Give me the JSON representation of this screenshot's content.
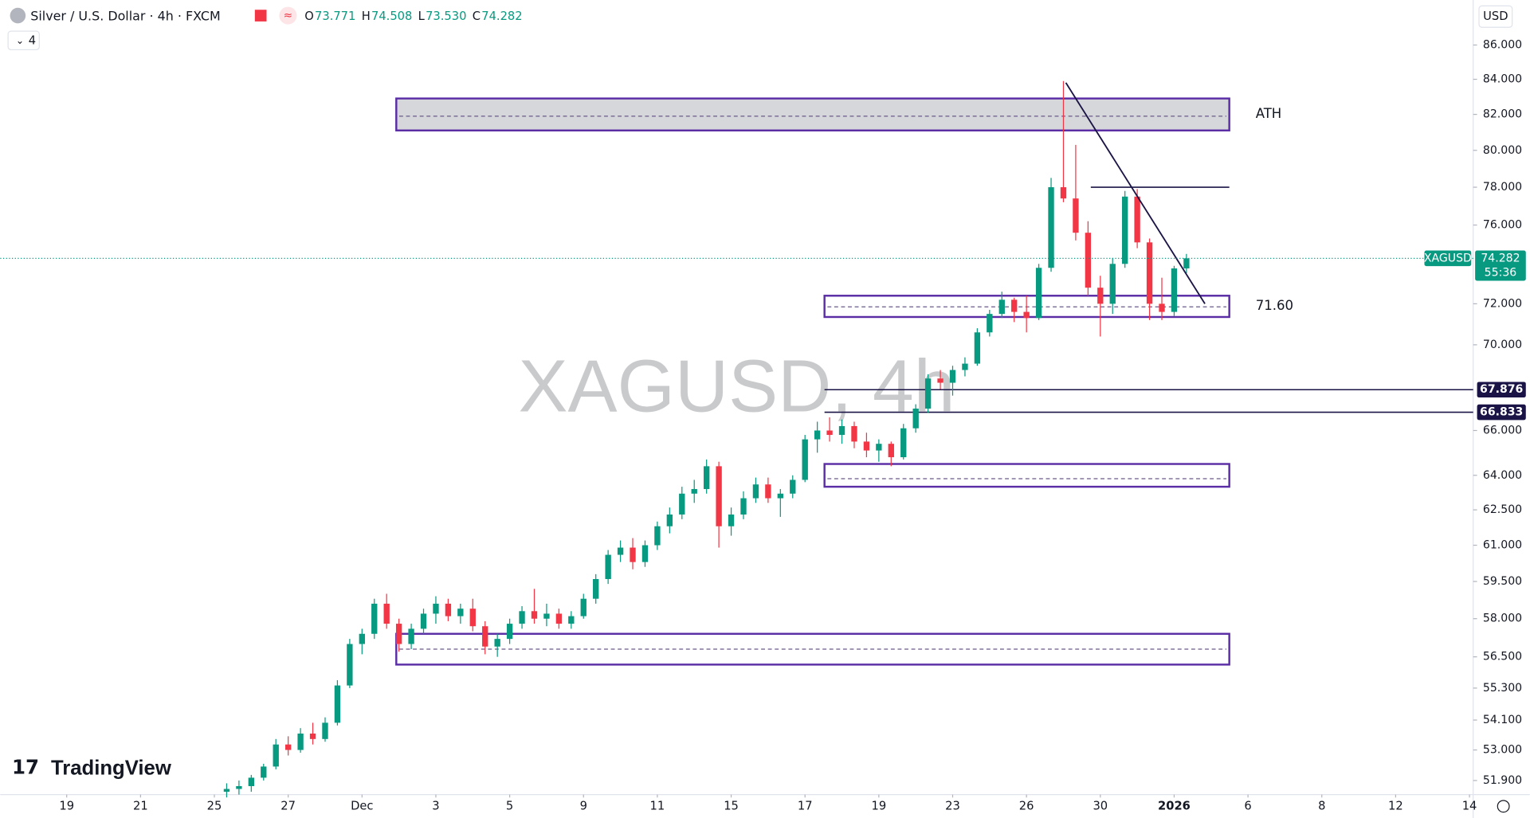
{
  "header": {
    "symbol": "Silver / U.S. Dollar · 4h · FXCM",
    "ohlc": [
      {
        "key": "O",
        "text": "73.771"
      },
      {
        "key": "H",
        "text": "74.508"
      },
      {
        "key": "L",
        "text": "73.530"
      },
      {
        "key": "C",
        "text": "74.282"
      }
    ],
    "indicators": "4",
    "currency": "USD",
    "logo": "TradingView"
  },
  "chart_data": {
    "type": "candlestick",
    "watermark": "XAGUSD, 4h",
    "symbol_tag": "XAGUSD",
    "countdown": "55:36",
    "log_scale": true,
    "up_color": "#089981",
    "down_color": "#f23645",
    "ylim": [
      51.4,
      88.7
    ],
    "yticks": [
      {
        "value": 86,
        "label": "86.000"
      },
      {
        "value": 84,
        "label": "84.000"
      },
      {
        "value": 82,
        "label": "82.000"
      },
      {
        "value": 80,
        "label": "80.000"
      },
      {
        "value": 78,
        "label": "78.000"
      },
      {
        "value": 76,
        "label": "76.000"
      },
      {
        "value": 72,
        "label": "72.000"
      },
      {
        "value": 70,
        "label": "70.000"
      },
      {
        "value": 66,
        "label": "66.000"
      },
      {
        "value": 64,
        "label": "64.000"
      },
      {
        "value": 62.5,
        "label": "62.500"
      },
      {
        "value": 61,
        "label": "61.000"
      },
      {
        "value": 59.5,
        "label": "59.500"
      },
      {
        "value": 58,
        "label": "58.000"
      },
      {
        "value": 56.5,
        "label": "56.500"
      },
      {
        "value": 55.3,
        "label": "55.300"
      },
      {
        "value": 54.1,
        "label": "54.100"
      },
      {
        "value": 53,
        "label": "53.000"
      },
      {
        "value": 51.9,
        "label": "51.900"
      }
    ],
    "xlim": [
      -18.4,
      101.3
    ],
    "xticks": [
      {
        "value": -13,
        "label": "19"
      },
      {
        "value": -7,
        "label": "21"
      },
      {
        "value": -1,
        "label": "25"
      },
      {
        "value": 5,
        "label": "27"
      },
      {
        "value": 11,
        "label": "Dec"
      },
      {
        "value": 17,
        "label": "3"
      },
      {
        "value": 23,
        "label": "5"
      },
      {
        "value": 29,
        "label": "9"
      },
      {
        "value": 35,
        "label": "11"
      },
      {
        "value": 41,
        "label": "15"
      },
      {
        "value": 47,
        "label": "17"
      },
      {
        "value": 53,
        "label": "19"
      },
      {
        "value": 59,
        "label": "23"
      },
      {
        "value": 65,
        "label": "26"
      },
      {
        "value": 71,
        "label": "30"
      },
      {
        "value": 77,
        "label": "2026"
      },
      {
        "value": 83,
        "label": "6"
      },
      {
        "value": 89,
        "label": "8"
      },
      {
        "value": 95,
        "label": "12"
      },
      {
        "value": 101,
        "label": "14"
      }
    ],
    "candles": [
      {
        "open": 51.5,
        "high": 51.8,
        "low": 51.3,
        "close": 51.6
      },
      {
        "open": 51.6,
        "high": 51.9,
        "low": 51.4,
        "close": 51.7
      },
      {
        "open": 51.7,
        "high": 52.1,
        "low": 51.5,
        "close": 52.0
      },
      {
        "open": 52.0,
        "high": 52.5,
        "low": 51.9,
        "close": 52.4
      },
      {
        "open": 52.4,
        "high": 53.4,
        "low": 52.3,
        "close": 53.2
      },
      {
        "open": 53.2,
        "high": 53.5,
        "low": 52.8,
        "close": 53.0
      },
      {
        "open": 53.0,
        "high": 53.8,
        "low": 52.9,
        "close": 53.6
      },
      {
        "open": 53.6,
        "high": 54.0,
        "low": 53.2,
        "close": 53.4
      },
      {
        "open": 53.4,
        "high": 54.2,
        "low": 53.3,
        "close": 54.0
      },
      {
        "open": 54.0,
        "high": 55.6,
        "low": 53.9,
        "close": 55.4
      },
      {
        "open": 55.4,
        "high": 57.2,
        "low": 55.3,
        "close": 57.0
      },
      {
        "open": 57.0,
        "high": 57.6,
        "low": 56.6,
        "close": 57.4
      },
      {
        "open": 57.4,
        "high": 58.8,
        "low": 57.2,
        "close": 58.6
      },
      {
        "open": 58.6,
        "high": 59.0,
        "low": 57.6,
        "close": 57.8
      },
      {
        "open": 57.8,
        "high": 58.0,
        "low": 56.7,
        "close": 57.0
      },
      {
        "open": 57.0,
        "high": 57.8,
        "low": 56.8,
        "close": 57.6
      },
      {
        "open": 57.6,
        "high": 58.4,
        "low": 57.4,
        "close": 58.2
      },
      {
        "open": 58.2,
        "high": 58.9,
        "low": 57.8,
        "close": 58.6
      },
      {
        "open": 58.6,
        "high": 58.8,
        "low": 57.9,
        "close": 58.1
      },
      {
        "open": 58.1,
        "high": 58.6,
        "low": 57.8,
        "close": 58.4
      },
      {
        "open": 58.4,
        "high": 58.8,
        "low": 57.5,
        "close": 57.7
      },
      {
        "open": 57.7,
        "high": 57.9,
        "low": 56.6,
        "close": 56.9
      },
      {
        "open": 56.9,
        "high": 57.4,
        "low": 56.5,
        "close": 57.2
      },
      {
        "open": 57.2,
        "high": 58.0,
        "low": 57.0,
        "close": 57.8
      },
      {
        "open": 57.8,
        "high": 58.5,
        "low": 57.6,
        "close": 58.3
      },
      {
        "open": 58.3,
        "high": 59.2,
        "low": 57.8,
        "close": 58.0
      },
      {
        "open": 58.0,
        "high": 58.6,
        "low": 57.7,
        "close": 58.2
      },
      {
        "open": 58.2,
        "high": 58.4,
        "low": 57.6,
        "close": 57.8
      },
      {
        "open": 57.8,
        "high": 58.3,
        "low": 57.6,
        "close": 58.1
      },
      {
        "open": 58.1,
        "high": 59.0,
        "low": 58.0,
        "close": 58.8
      },
      {
        "open": 58.8,
        "high": 59.8,
        "low": 58.6,
        "close": 59.6
      },
      {
        "open": 59.6,
        "high": 60.8,
        "low": 59.4,
        "close": 60.6
      },
      {
        "open": 60.6,
        "high": 61.2,
        "low": 60.3,
        "close": 60.9
      },
      {
        "open": 60.9,
        "high": 61.3,
        "low": 60.0,
        "close": 60.3
      },
      {
        "open": 60.3,
        "high": 61.2,
        "low": 60.1,
        "close": 61.0
      },
      {
        "open": 61.0,
        "high": 62.0,
        "low": 60.8,
        "close": 61.8
      },
      {
        "open": 61.8,
        "high": 62.6,
        "low": 61.5,
        "close": 62.3
      },
      {
        "open": 62.3,
        "high": 63.5,
        "low": 62.1,
        "close": 63.2
      },
      {
        "open": 63.2,
        "high": 63.8,
        "low": 62.8,
        "close": 63.4
      },
      {
        "open": 63.4,
        "high": 64.7,
        "low": 63.2,
        "close": 64.4
      },
      {
        "open": 64.4,
        "high": 64.6,
        "low": 60.9,
        "close": 61.8
      },
      {
        "open": 61.8,
        "high": 62.6,
        "low": 61.4,
        "close": 62.3
      },
      {
        "open": 62.3,
        "high": 63.3,
        "low": 62.1,
        "close": 63.0
      },
      {
        "open": 63.0,
        "high": 63.9,
        "low": 62.8,
        "close": 63.6
      },
      {
        "open": 63.6,
        "high": 63.9,
        "low": 62.8,
        "close": 63.0
      },
      {
        "open": 63.0,
        "high": 63.4,
        "low": 62.2,
        "close": 63.2
      },
      {
        "open": 63.2,
        "high": 64.0,
        "low": 63.0,
        "close": 63.8
      },
      {
        "open": 63.8,
        "high": 65.8,
        "low": 63.7,
        "close": 65.6
      },
      {
        "open": 65.6,
        "high": 66.4,
        "low": 65.0,
        "close": 66.0
      },
      {
        "open": 66.0,
        "high": 66.6,
        "low": 65.5,
        "close": 65.8
      },
      {
        "open": 65.8,
        "high": 66.5,
        "low": 65.4,
        "close": 66.2
      },
      {
        "open": 66.2,
        "high": 66.4,
        "low": 65.2,
        "close": 65.5
      },
      {
        "open": 65.5,
        "high": 65.9,
        "low": 64.8,
        "close": 65.1
      },
      {
        "open": 65.1,
        "high": 65.6,
        "low": 64.6,
        "close": 65.4
      },
      {
        "open": 65.4,
        "high": 65.5,
        "low": 64.4,
        "close": 64.8
      },
      {
        "open": 64.8,
        "high": 66.3,
        "low": 64.7,
        "close": 66.1
      },
      {
        "open": 66.1,
        "high": 67.2,
        "low": 65.9,
        "close": 67.0
      },
      {
        "open": 67.0,
        "high": 68.6,
        "low": 66.8,
        "close": 68.4
      },
      {
        "open": 68.4,
        "high": 68.8,
        "low": 67.9,
        "close": 68.2
      },
      {
        "open": 68.2,
        "high": 69.0,
        "low": 67.6,
        "close": 68.8
      },
      {
        "open": 68.8,
        "high": 69.4,
        "low": 68.5,
        "close": 69.1
      },
      {
        "open": 69.1,
        "high": 70.8,
        "low": 69.0,
        "close": 70.6
      },
      {
        "open": 70.6,
        "high": 71.7,
        "low": 70.4,
        "close": 71.5
      },
      {
        "open": 71.5,
        "high": 72.6,
        "low": 71.3,
        "close": 72.2
      },
      {
        "open": 72.2,
        "high": 72.3,
        "low": 71.1,
        "close": 71.6
      },
      {
        "open": 71.6,
        "high": 72.4,
        "low": 70.6,
        "close": 71.3
      },
      {
        "open": 71.3,
        "high": 74.0,
        "low": 71.2,
        "close": 73.8
      },
      {
        "open": 73.8,
        "high": 78.5,
        "low": 73.6,
        "close": 78.0
      },
      {
        "open": 78.0,
        "high": 83.9,
        "low": 77.2,
        "close": 77.4
      },
      {
        "open": 77.4,
        "high": 80.3,
        "low": 75.2,
        "close": 75.6
      },
      {
        "open": 75.6,
        "high": 76.2,
        "low": 72.4,
        "close": 72.8
      },
      {
        "open": 72.8,
        "high": 73.4,
        "low": 70.4,
        "close": 72.0
      },
      {
        "open": 72.0,
        "high": 74.3,
        "low": 71.5,
        "close": 74.0
      },
      {
        "open": 74.0,
        "high": 77.8,
        "low": 73.8,
        "close": 77.5
      },
      {
        "open": 77.5,
        "high": 77.9,
        "low": 74.8,
        "close": 75.1
      },
      {
        "open": 75.1,
        "high": 75.3,
        "low": 71.2,
        "close": 72.0
      },
      {
        "open": 72.0,
        "high": 73.3,
        "low": 71.2,
        "close": 71.6
      },
      {
        "open": 71.6,
        "high": 73.9,
        "low": 71.4,
        "close": 73.77
      },
      {
        "open": 73.771,
        "high": 74.508,
        "low": 73.53,
        "close": 74.282
      }
    ],
    "last_price": 74.282,
    "zones": [
      {
        "label": "ATH",
        "low": 81.1,
        "high": 82.9,
        "mid": 81.9
      },
      {
        "label": "71.60",
        "low": 71.35,
        "high": 72.4,
        "mid": 71.85
      },
      {
        "low": 63.5,
        "high": 64.5,
        "mid": 63.85
      },
      {
        "low": 56.2,
        "high": 57.4,
        "mid": 56.8
      }
    ],
    "resistance": 78.0,
    "levels": [
      67.876,
      66.833
    ],
    "trendline": {
      "x": [
        68.2,
        79.5
      ],
      "y": [
        83.8,
        72.0
      ]
    }
  }
}
